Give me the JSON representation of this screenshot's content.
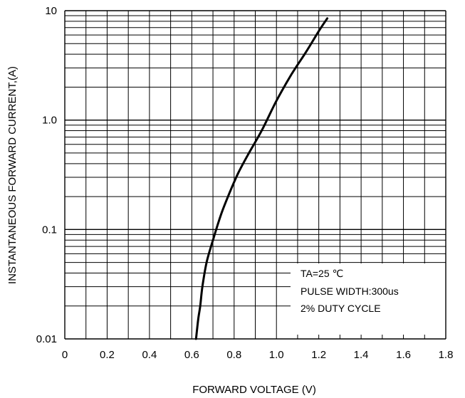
{
  "chart_data": {
    "type": "line",
    "title": "",
    "xlabel": "FORWARD VOLTAGE (V)",
    "ylabel": "INSTANTANEOUS FORWARD CURRENT,(A)",
    "xscale": "linear",
    "yscale": "log",
    "xlim": [
      0,
      1.8
    ],
    "ylim": [
      0.01,
      10
    ],
    "grid": true,
    "x_ticks": [
      0,
      0.2,
      0.4,
      0.6,
      0.8,
      1.0,
      1.2,
      1.4,
      1.6,
      1.8
    ],
    "x_tick_labels": [
      "0",
      "0.2",
      "0.4",
      "0.6",
      "0.8",
      "1.0",
      "1.2",
      "1.4",
      "1.6",
      "1.8"
    ],
    "y_ticks": [
      0.01,
      0.1,
      1,
      10
    ],
    "y_tick_labels": [
      "0.01",
      "0.1",
      "1.0",
      "10"
    ],
    "annotations": [
      "TA=25 ℃",
      "PULSE WIDTH:300us",
      "2% DUTY CYCLE"
    ],
    "series": [
      {
        "x": [
          0.62,
          0.63,
          0.64,
          0.65,
          0.67,
          0.7,
          0.74,
          0.78,
          0.82,
          0.87,
          0.93,
          1.0,
          1.07,
          1.14,
          1.2,
          1.24
        ],
        "y": [
          0.01,
          0.015,
          0.02,
          0.03,
          0.05,
          0.08,
          0.14,
          0.22,
          0.33,
          0.5,
          0.8,
          1.5,
          2.6,
          4.2,
          6.5,
          8.5
        ]
      }
    ]
  }
}
